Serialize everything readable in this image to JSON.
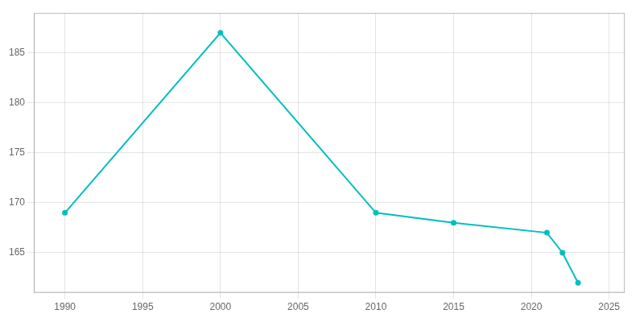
{
  "chart_data": {
    "type": "line",
    "x": [
      1990,
      2000,
      2010,
      2015,
      2021,
      2022,
      2023
    ],
    "values": [
      169,
      187,
      169,
      168,
      167,
      165,
      162
    ],
    "color": "#00BFBF",
    "marker": "circle",
    "xlim": [
      1988,
      2026
    ],
    "ylim": [
      161,
      189
    ],
    "xticks": [
      1990,
      1995,
      2000,
      2005,
      2010,
      2015,
      2020,
      2025
    ],
    "yticks": [
      165,
      170,
      175,
      180,
      185
    ],
    "grid": true
  }
}
